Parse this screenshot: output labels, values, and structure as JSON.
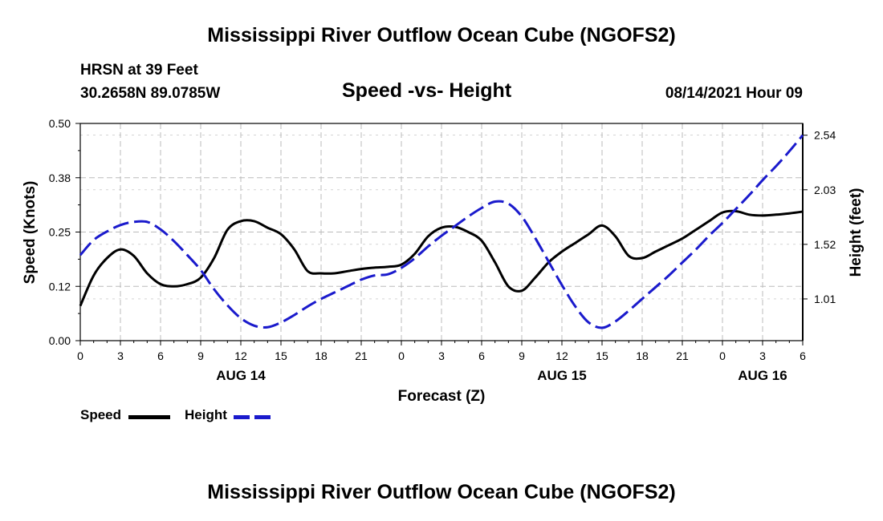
{
  "header": {
    "title": "Mississippi River Outflow Ocean Cube (NGOFS2)",
    "station": "HRSN at 39 Feet",
    "coords": "30.2658N  89.0785W",
    "subtitle": "Speed -vs- Height",
    "datetime": "08/14/2021 Hour 09",
    "footer_title": "Mississippi River Outflow Ocean Cube (NGOFS2)"
  },
  "legend": {
    "speed_label": "Speed",
    "height_label": "Height"
  },
  "colors": {
    "speed": "#000000",
    "height": "#1a1acc",
    "grid": "#bbbbbb"
  },
  "chart_data": {
    "type": "line",
    "title": "Speed -vs- Height",
    "xlabel": "Forecast (Z)",
    "ylabel_left": "Speed (Knots)",
    "ylabel_right": "Height (feet)",
    "x_range_hours": [
      0,
      54
    ],
    "x_ticks": [
      {
        "h": 0,
        "label": "0"
      },
      {
        "h": 3,
        "label": "3"
      },
      {
        "h": 6,
        "label": "6"
      },
      {
        "h": 9,
        "label": "9"
      },
      {
        "h": 12,
        "label": "12"
      },
      {
        "h": 15,
        "label": "15"
      },
      {
        "h": 18,
        "label": "18"
      },
      {
        "h": 21,
        "label": "21"
      },
      {
        "h": 24,
        "label": "0"
      },
      {
        "h": 27,
        "label": "3"
      },
      {
        "h": 30,
        "label": "6"
      },
      {
        "h": 33,
        "label": "9"
      },
      {
        "h": 36,
        "label": "12"
      },
      {
        "h": 39,
        "label": "15"
      },
      {
        "h": 42,
        "label": "18"
      },
      {
        "h": 45,
        "label": "21"
      },
      {
        "h": 48,
        "label": "0"
      },
      {
        "h": 51,
        "label": "3"
      },
      {
        "h": 54,
        "label": "6"
      }
    ],
    "date_labels": [
      {
        "h": 12,
        "label": "AUG 14"
      },
      {
        "h": 36,
        "label": "AUG 15"
      },
      {
        "h": 51,
        "label": "AUG 16"
      }
    ],
    "y_left": {
      "min": 0,
      "max": 0.5,
      "ticks": [
        "0.00",
        "0.12",
        "0.25",
        "0.38",
        "0.50"
      ],
      "tick_values": [
        0,
        0.125,
        0.25,
        0.375,
        0.5
      ]
    },
    "y_right": {
      "min": 0.62,
      "max": 2.65,
      "ticks": [
        "1.01",
        "1.52",
        "2.03",
        "2.54"
      ],
      "tick_values": [
        1.01,
        1.52,
        2.03,
        2.54
      ]
    },
    "series": [
      {
        "name": "Speed",
        "axis": "left",
        "style": "solid",
        "points": [
          [
            0,
            0.08
          ],
          [
            1,
            0.15
          ],
          [
            2,
            0.19
          ],
          [
            3,
            0.21
          ],
          [
            4,
            0.195
          ],
          [
            5,
            0.155
          ],
          [
            6,
            0.13
          ],
          [
            7,
            0.125
          ],
          [
            8,
            0.13
          ],
          [
            9,
            0.145
          ],
          [
            10,
            0.19
          ],
          [
            11,
            0.255
          ],
          [
            12,
            0.275
          ],
          [
            13,
            0.275
          ],
          [
            14,
            0.26
          ],
          [
            15,
            0.245
          ],
          [
            16,
            0.21
          ],
          [
            17,
            0.16
          ],
          [
            18,
            0.155
          ],
          [
            19,
            0.155
          ],
          [
            20,
            0.16
          ],
          [
            21,
            0.165
          ],
          [
            22,
            0.168
          ],
          [
            23,
            0.17
          ],
          [
            24,
            0.175
          ],
          [
            25,
            0.2
          ],
          [
            26,
            0.24
          ],
          [
            27,
            0.26
          ],
          [
            28,
            0.262
          ],
          [
            29,
            0.25
          ],
          [
            30,
            0.23
          ],
          [
            31,
            0.18
          ],
          [
            32,
            0.125
          ],
          [
            33,
            0.115
          ],
          [
            34,
            0.145
          ],
          [
            35,
            0.18
          ],
          [
            36,
            0.205
          ],
          [
            37,
            0.225
          ],
          [
            38,
            0.245
          ],
          [
            39,
            0.265
          ],
          [
            40,
            0.24
          ],
          [
            41,
            0.195
          ],
          [
            42,
            0.19
          ],
          [
            43,
            0.205
          ],
          [
            44,
            0.22
          ],
          [
            45,
            0.235
          ],
          [
            46,
            0.255
          ],
          [
            47,
            0.275
          ],
          [
            48,
            0.295
          ],
          [
            49,
            0.298
          ],
          [
            50,
            0.29
          ],
          [
            51,
            0.288
          ],
          [
            52,
            0.29
          ],
          [
            53,
            0.293
          ],
          [
            54,
            0.297
          ]
        ]
      },
      {
        "name": "Height",
        "axis": "right",
        "style": "dashed",
        "points": [
          [
            0,
            1.42
          ],
          [
            1,
            1.56
          ],
          [
            2,
            1.64
          ],
          [
            3,
            1.7
          ],
          [
            4,
            1.73
          ],
          [
            5,
            1.73
          ],
          [
            6,
            1.66
          ],
          [
            7,
            1.55
          ],
          [
            8,
            1.42
          ],
          [
            9,
            1.28
          ],
          [
            10,
            1.1
          ],
          [
            11,
            0.95
          ],
          [
            12,
            0.83
          ],
          [
            13,
            0.76
          ],
          [
            14,
            0.745
          ],
          [
            15,
            0.79
          ],
          [
            16,
            0.86
          ],
          [
            17,
            0.94
          ],
          [
            18,
            1.01
          ],
          [
            19,
            1.07
          ],
          [
            20,
            1.13
          ],
          [
            21,
            1.19
          ],
          [
            22,
            1.23
          ],
          [
            23,
            1.24
          ],
          [
            24,
            1.3
          ],
          [
            25,
            1.39
          ],
          [
            26,
            1.5
          ],
          [
            27,
            1.6
          ],
          [
            28,
            1.69
          ],
          [
            29,
            1.78
          ],
          [
            30,
            1.86
          ],
          [
            31,
            1.92
          ],
          [
            32,
            1.9
          ],
          [
            33,
            1.78
          ],
          [
            34,
            1.58
          ],
          [
            35,
            1.36
          ],
          [
            36,
            1.14
          ],
          [
            37,
            0.94
          ],
          [
            38,
            0.79
          ],
          [
            39,
            0.74
          ],
          [
            40,
            0.8
          ],
          [
            41,
            0.9
          ],
          [
            42,
            1.01
          ],
          [
            43,
            1.12
          ],
          [
            44,
            1.23
          ],
          [
            45,
            1.35
          ],
          [
            46,
            1.47
          ],
          [
            47,
            1.6
          ],
          [
            48,
            1.72
          ],
          [
            49,
            1.85
          ],
          [
            50,
            1.98
          ],
          [
            51,
            2.12
          ],
          [
            52,
            2.25
          ],
          [
            53,
            2.39
          ],
          [
            54,
            2.54
          ]
        ]
      }
    ]
  }
}
